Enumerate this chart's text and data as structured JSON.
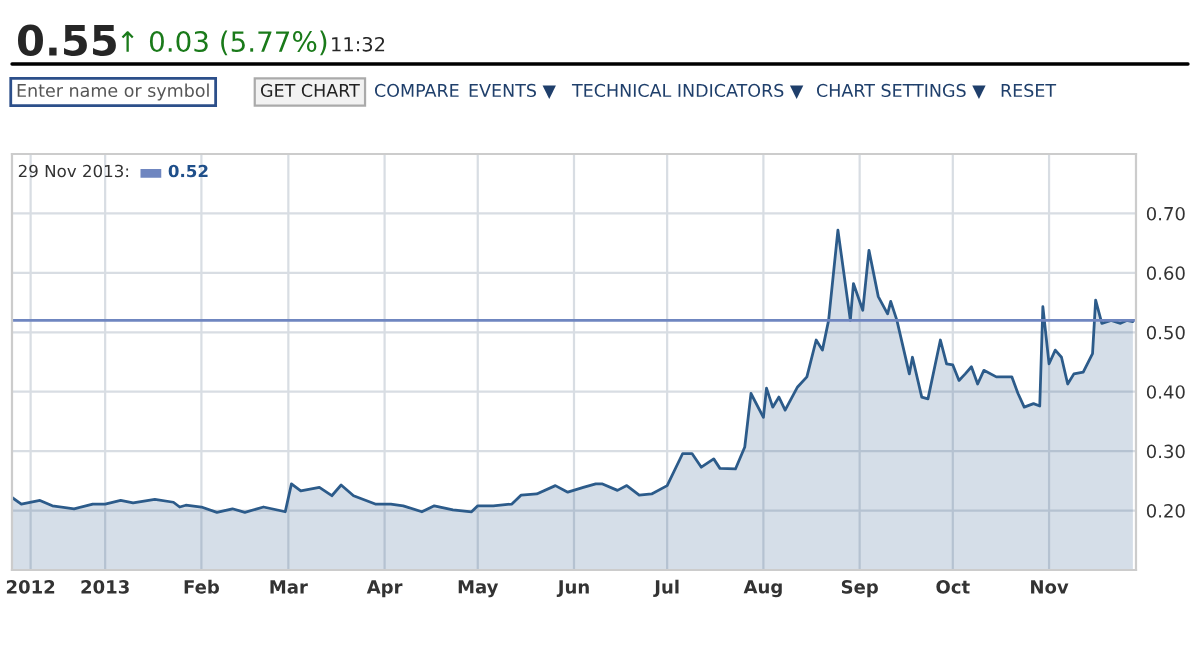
{
  "chart_data": {
    "type": "area",
    "title": "0.55",
    "subtitle": "↑ 0.03 (5.77%)",
    "annotations": [
      "11:32",
      "Enter name or symbol",
      "GET CHART",
      "COMPARE",
      "EVENTS ▼",
      "TECHNICAL INDICATORS ▼",
      "CHART SETTINGS ▼",
      "RESET",
      "29 Nov 2013:"
    ],
    "series": [
      {
        "color": "#2c5b8a",
        "x": [
          "2012-12-02",
          "2012-12-05",
          "2012-12-11",
          "2012-12-15",
          "2012-12-22",
          "2012-12-28",
          "2013-01-01",
          "2013-01-06",
          "2013-01-10",
          "2013-01-17",
          "2013-01-23",
          "2013-01-25",
          "2013-01-27",
          "2013-02-01",
          "2013-02-06",
          "2013-02-11",
          "2013-02-15",
          "2013-02-21",
          "2013-02-28",
          "2013-03-02",
          "2013-03-05",
          "2013-03-11",
          "2013-03-15",
          "2013-03-18",
          "2013-03-22",
          "2013-03-29",
          "2013-04-03",
          "2013-04-07",
          "2013-04-13",
          "2013-04-17",
          "2013-04-23",
          "2013-04-29",
          "2013-05-01",
          "2013-05-06",
          "2013-05-12",
          "2013-05-15",
          "2013-05-20",
          "2013-05-26",
          "2013-05-30",
          "2013-06-04",
          "2013-06-08",
          "2013-06-10",
          "2013-06-15",
          "2013-06-18",
          "2013-06-22",
          "2013-06-26",
          "2013-07-01",
          "2013-07-06",
          "2013-07-09",
          "2013-07-12",
          "2013-07-16",
          "2013-07-18",
          "2013-07-23",
          "2013-07-26",
          "2013-07-28",
          "2013-08-01",
          "2013-08-02",
          "2013-08-04",
          "2013-08-06",
          "2013-08-08",
          "2013-08-12",
          "2013-08-15",
          "2013-08-18",
          "2013-08-20",
          "2013-08-22",
          "2013-08-25",
          "2013-08-29",
          "2013-08-30",
          "2013-09-02",
          "2013-09-04",
          "2013-09-07",
          "2013-09-10",
          "2013-09-11",
          "2013-09-13",
          "2013-09-17",
          "2013-09-18",
          "2013-09-21",
          "2013-09-23",
          "2013-09-27",
          "2013-09-29",
          "2013-10-01",
          "2013-10-03",
          "2013-10-05",
          "2013-10-07",
          "2013-10-09",
          "2013-10-11",
          "2013-10-15",
          "2013-10-20",
          "2013-10-22",
          "2013-10-24",
          "2013-10-27",
          "2013-10-29",
          "2013-10-30",
          "2013-11-01",
          "2013-11-03",
          "2013-11-05",
          "2013-11-07",
          "2013-11-09",
          "2013-11-12",
          "2013-11-15",
          "2013-11-16",
          "2013-11-18",
          "2013-11-21",
          "2013-11-24",
          "2013-11-26",
          "2013-11-28"
        ],
        "values": [
          0.222,
          0.211,
          0.217,
          0.208,
          0.203,
          0.211,
          0.211,
          0.217,
          0.213,
          0.219,
          0.214,
          0.206,
          0.209,
          0.206,
          0.197,
          0.203,
          0.197,
          0.206,
          0.198,
          0.245,
          0.233,
          0.239,
          0.225,
          0.243,
          0.225,
          0.211,
          0.211,
          0.208,
          0.198,
          0.208,
          0.201,
          0.198,
          0.208,
          0.208,
          0.211,
          0.226,
          0.228,
          0.242,
          0.231,
          0.239,
          0.245,
          0.245,
          0.234,
          0.242,
          0.226,
          0.228,
          0.242,
          0.296,
          0.296,
          0.273,
          0.287,
          0.271,
          0.27,
          0.307,
          0.397,
          0.357,
          0.406,
          0.374,
          0.391,
          0.369,
          0.408,
          0.425,
          0.487,
          0.47,
          0.52,
          0.672,
          0.52,
          0.582,
          0.537,
          0.638,
          0.56,
          0.531,
          0.552,
          0.52,
          0.43,
          0.458,
          0.391,
          0.388,
          0.487,
          0.447,
          0.445,
          0.419,
          0.43,
          0.442,
          0.413,
          0.436,
          0.425,
          0.425,
          0.397,
          0.374,
          0.38,
          0.376,
          0.543,
          0.447,
          0.47,
          0.458,
          0.413,
          0.43,
          0.433,
          0.464,
          0.554,
          0.515,
          0.52,
          0.515,
          0.52,
          0.518
        ]
      }
    ],
    "xlim": [
      "2012-12-02",
      "2013-11-29"
    ],
    "xticks": [
      {
        "value": "2012-12-08",
        "label": "2012"
      },
      {
        "value": "2013-01-01",
        "label": "2013"
      },
      {
        "value": "2013-02-01",
        "label": "Feb"
      },
      {
        "value": "2013-03-01",
        "label": "Mar"
      },
      {
        "value": "2013-04-01",
        "label": "Apr"
      },
      {
        "value": "2013-05-01",
        "label": "May"
      },
      {
        "value": "2013-06-01",
        "label": "Jun"
      },
      {
        "value": "2013-07-01",
        "label": "Jul"
      },
      {
        "value": "2013-08-01",
        "label": "Aug"
      },
      {
        "value": "2013-09-01",
        "label": "Sep"
      },
      {
        "value": "2013-10-01",
        "label": "Oct"
      },
      {
        "value": "2013-11-01",
        "label": "Nov"
      }
    ],
    "ylim": [
      0.1,
      0.8
    ],
    "yticks": [
      {
        "value": 0.2,
        "label": "0.20"
      },
      {
        "value": 0.3,
        "label": "0.30"
      },
      {
        "value": 0.4,
        "label": "0.40"
      },
      {
        "value": 0.5,
        "label": "0.50"
      },
      {
        "value": 0.6,
        "label": "0.60"
      },
      {
        "value": 0.7,
        "label": "0.70"
      }
    ],
    "ref_lines": [
      {
        "axis": "y",
        "value": 0.52,
        "label": "0.52",
        "color": "#6f86c0"
      }
    ],
    "grid": true
  }
}
